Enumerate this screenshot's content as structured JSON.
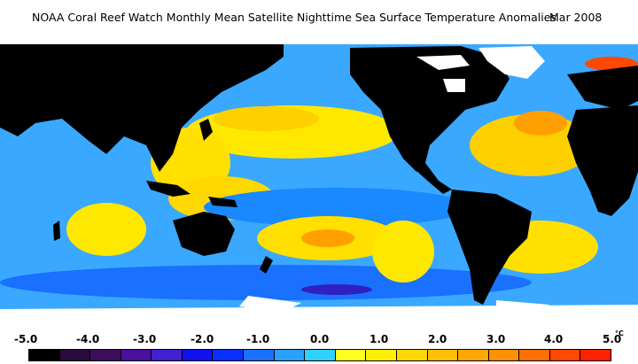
{
  "title": {
    "main": "NOAA Coral Reef Watch Monthly Mean Satellite Nighttime Sea Surface Temperature Anomalies",
    "date": "Mar 2008"
  },
  "legend": {
    "ticks": [
      "-5.0",
      "-4.0",
      "-3.0",
      "-2.0",
      "-1.0",
      "0.0",
      "1.0",
      "2.0",
      "3.0",
      "4.0",
      "5.0"
    ],
    "unit": "°C",
    "colors": [
      "#000000",
      "#2a0a3a",
      "#3d0d5c",
      "#4b0f9e",
      "#4020d0",
      "#1010f0",
      "#0a30ff",
      "#1a70ff",
      "#2aa0ff",
      "#30d0ff",
      "#ffff20",
      "#fff000",
      "#ffd800",
      "#ffc000",
      "#ffa800",
      "#ff9000",
      "#ff7000",
      "#ff4800",
      "#ff2000"
    ]
  },
  "map": {
    "land_color": "#000000",
    "ice_color": "#ffffff",
    "ocean_base": "#3ab0ff"
  }
}
